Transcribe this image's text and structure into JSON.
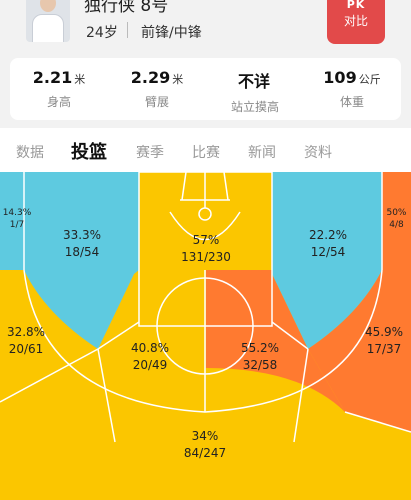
{
  "player": {
    "name": "独行侠 8号",
    "age": "24岁",
    "position": "前锋/中锋"
  },
  "pk_button": {
    "top": "PK",
    "label": "对比"
  },
  "stats": [
    {
      "value": "2.21",
      "unit": "米",
      "label": "身高"
    },
    {
      "value": "2.29",
      "unit": "米",
      "label": "臂展"
    },
    {
      "value": "不详",
      "unit": "",
      "label": "站立摸高"
    },
    {
      "value": "109",
      "unit": "公斤",
      "label": "体重"
    }
  ],
  "tabs": [
    "数据",
    "投篮",
    "赛季",
    "比赛",
    "新闻",
    "资料"
  ],
  "active_tab": "投篮",
  "colors": {
    "blue": "#5ecae0",
    "yellow": "#fbc600",
    "orange": "#ff7a30",
    "pk_red": "#e24a4a"
  },
  "zones": [
    {
      "pct": "14.3%",
      "made": "1/7"
    },
    {
      "pct": "33.3%",
      "made": "18/54"
    },
    {
      "pct": "57%",
      "made": "131/230"
    },
    {
      "pct": "22.2%",
      "made": "12/54"
    },
    {
      "pct": "50%",
      "made": "4/8"
    },
    {
      "pct": "32.8%",
      "made": "20/61"
    },
    {
      "pct": "40.8%",
      "made": "20/49"
    },
    {
      "pct": "55.2%",
      "made": "32/58"
    },
    {
      "pct": "45.9%",
      "made": "17/37"
    },
    {
      "pct": "34%",
      "made": "84/247"
    }
  ]
}
